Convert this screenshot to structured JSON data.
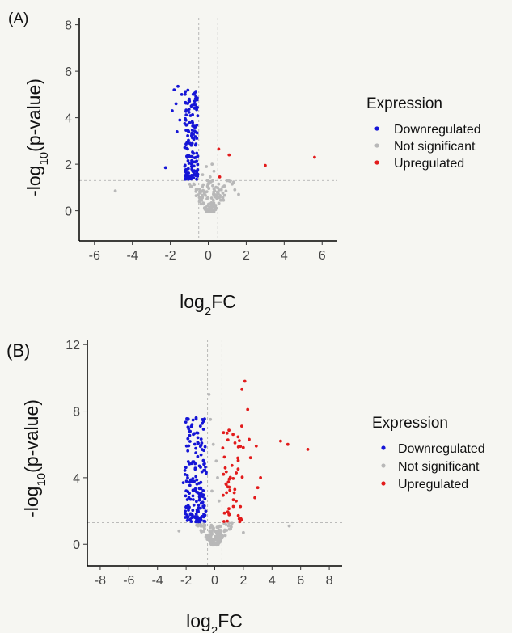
{
  "panels": [
    {
      "tag": "(A)",
      "ylabel": {
        "prefix": "-log",
        "sub": "10",
        "suffix": "(p-value)"
      },
      "xlabel": {
        "prefix": "log",
        "sub": "2",
        "suffix": "FC"
      },
      "legend": {
        "title": "Expression",
        "items": [
          {
            "label": "Downregulated",
            "color": "#1515d6"
          },
          {
            "label": "Not significant",
            "color": "#b8b8b8"
          },
          {
            "label": "Upregulated",
            "color": "#e21b1b"
          }
        ]
      }
    },
    {
      "tag": "(B)",
      "ylabel": {
        "prefix": "-log",
        "sub": "10",
        "suffix": "(p-value)"
      },
      "xlabel": {
        "prefix": "log",
        "sub": "2",
        "suffix": "FC"
      },
      "legend": {
        "title": "Expression",
        "items": [
          {
            "label": "Downregulated",
            "color": "#1515d6"
          },
          {
            "label": "Not significant",
            "color": "#b8b8b8"
          },
          {
            "label": "Upregulated",
            "color": "#e21b1b"
          }
        ]
      }
    }
  ],
  "chart_data": [
    {
      "type": "scatter",
      "title": "",
      "xlim": [
        -6.8,
        6.8
      ],
      "ylim": [
        -1.3,
        8.3
      ],
      "xticks": [
        -6,
        -4,
        -2,
        0,
        2,
        4,
        6
      ],
      "yticks": [
        0,
        2,
        4,
        6,
        8
      ],
      "thresholds": {
        "x": [
          -0.5,
          0.5
        ],
        "y": 1.3
      },
      "clusters": {
        "down": {
          "xRange": [
            -1.25,
            -0.55
          ],
          "yRange": [
            1.35,
            5.3
          ],
          "count": 150
        },
        "ns": {
          "xRange": [
            -1.1,
            1.6
          ],
          "yRange": [
            -0.05,
            1.3
          ],
          "count": 130
        }
      },
      "series": [
        {
          "name": "Downregulated",
          "extra_points": [
            [
              -1.8,
              5.2
            ],
            [
              -1.6,
              5.35
            ],
            [
              -1.4,
              5.0
            ],
            [
              -1.7,
              4.6
            ],
            [
              -1.9,
              4.3
            ],
            [
              -2.25,
              1.85
            ],
            [
              -1.5,
              3.9
            ],
            [
              -1.65,
              3.4
            ]
          ]
        },
        {
          "name": "Not significant",
          "extra_points": [
            [
              -4.9,
              0.85
            ],
            [
              -0.3,
              1.55
            ],
            [
              0.2,
              2.0
            ],
            [
              0.3,
              1.7
            ],
            [
              0.1,
              1.45
            ],
            [
              -0.1,
              1.9
            ],
            [
              0.4,
              0.6
            ],
            [
              0.8,
              0.45
            ],
            [
              1.4,
              0.9
            ],
            [
              1.6,
              0.7
            ]
          ]
        },
        {
          "name": "Upregulated",
          "points": [
            [
              0.55,
              2.65
            ],
            [
              1.1,
              2.4
            ],
            [
              0.6,
              1.45
            ],
            [
              3.0,
              1.95
            ],
            [
              5.6,
              2.3
            ]
          ]
        }
      ]
    },
    {
      "type": "scatter",
      "title": "",
      "xlim": [
        -8.9,
        8.9
      ],
      "ylim": [
        -1.3,
        12.3
      ],
      "xticks": [
        -8,
        -6,
        -4,
        -2,
        0,
        2,
        4,
        6,
        8
      ],
      "yticks": [
        0,
        4,
        8,
        12
      ],
      "thresholds": {
        "x": [
          -0.5,
          0.5
        ],
        "y": 1.3
      },
      "clusters": {
        "down": {
          "xRange": [
            -2.1,
            -0.6
          ],
          "yRange": [
            1.35,
            7.6
          ],
          "count": 170
        },
        "up": {
          "xRange": [
            0.55,
            2.0
          ],
          "yRange": [
            1.35,
            7.5
          ],
          "count": 55
        },
        "ns": {
          "xRange": [
            -1.3,
            1.6
          ],
          "yRange": [
            -0.05,
            1.3
          ],
          "count": 140
        }
      },
      "series": [
        {
          "name": "Downregulated",
          "extra_points": [
            [
              -1.3,
              7.6
            ],
            [
              -1.0,
              7.1
            ],
            [
              -1.5,
              6.6
            ],
            [
              -2.2,
              3.7
            ]
          ]
        },
        {
          "name": "Not significant",
          "extra_points": [
            [
              -2.5,
              0.8
            ],
            [
              -0.4,
              9.0
            ],
            [
              -0.3,
              7.5
            ],
            [
              -0.1,
              6.0
            ],
            [
              0.1,
              5.0
            ],
            [
              0.2,
              4.0
            ],
            [
              0.3,
              2.6
            ],
            [
              5.2,
              1.1
            ],
            [
              -0.2,
              3.2
            ],
            [
              2.0,
              0.7
            ]
          ]
        },
        {
          "name": "Upregulated",
          "points": [
            [
              2.1,
              9.8
            ],
            [
              1.9,
              9.3
            ],
            [
              2.3,
              8.1
            ],
            [
              4.6,
              6.2
            ],
            [
              5.1,
              6.0
            ],
            [
              6.5,
              5.7
            ],
            [
              2.5,
              5.2
            ],
            [
              3.2,
              4.0
            ],
            [
              3.0,
              3.4
            ],
            [
              2.8,
              2.8
            ],
            [
              2.4,
              6.3
            ],
            [
              2.9,
              5.9
            ]
          ]
        }
      ]
    }
  ]
}
